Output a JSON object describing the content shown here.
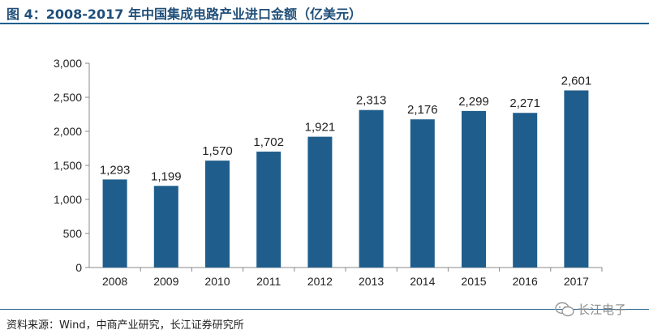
{
  "title": "图 4：2008-2017 年中国集成电路产业进口金额（亿美元）",
  "source": "资料来源：Wind，中商产业研究，长江证券研究所",
  "watermark": {
    "text": "长江电子",
    "icon": "wechat-icon"
  },
  "colors": {
    "bar": "#1f5e8c",
    "title": "#1f4e79",
    "rule": "#1f5e8c"
  },
  "chart_data": {
    "type": "bar",
    "categories": [
      "2008",
      "2009",
      "2010",
      "2011",
      "2012",
      "2013",
      "2014",
      "2015",
      "2016",
      "2017"
    ],
    "values": [
      1293,
      1199,
      1570,
      1702,
      1921,
      2313,
      2176,
      2299,
      2271,
      2601
    ],
    "data_labels": [
      "1,293",
      "1,199",
      "1,570",
      "1,702",
      "1,921",
      "2,313",
      "2,176",
      "2,299",
      "2,271",
      "2,601"
    ],
    "yticks": [
      0,
      500,
      1000,
      1500,
      2000,
      2500,
      3000
    ],
    "ytick_labels": [
      "0",
      "500",
      "1,000",
      "1,500",
      "2,000",
      "2,500",
      "3,000"
    ],
    "ylim": [
      0,
      3000
    ],
    "grid": false,
    "legend": "none"
  }
}
